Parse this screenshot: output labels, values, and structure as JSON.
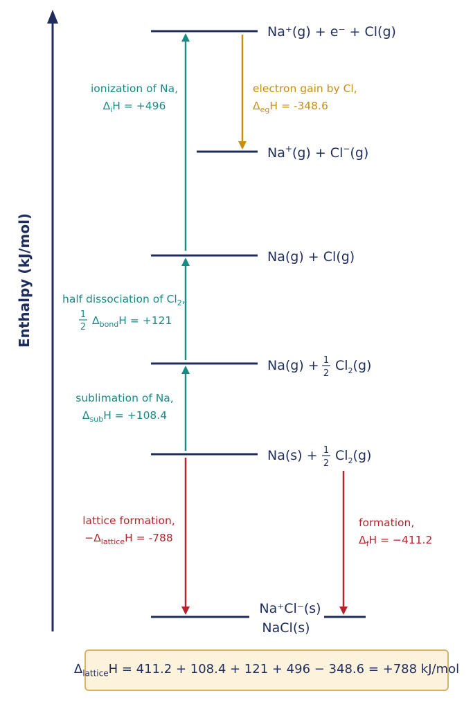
{
  "axis": {
    "label": "Enthalpy (kJ/mol)"
  },
  "levels": {
    "ionized": "Na⁺(g) + e⁻ + Cl(g)",
    "ions_pre": "Na",
    "ions_sup1": "+",
    "ions_mid": "(g) + Cl",
    "ions_sup2": "−",
    "ions_post": "(g)",
    "atoms": "Na(g) + Cl(g)",
    "half_dissoc_pre": "Na(g) +",
    "sublimed_pre": "Na(s) +",
    "frac_num": "1",
    "frac_den": "2",
    "cl2_cl": "Cl",
    "cl2_sub": "2",
    "cl2_post": "(g)",
    "product_line1": "Na⁺Cl⁻(s)",
    "product_line2": "NaCl(s)"
  },
  "steps": {
    "ionization": {
      "title": "ionization of Na,",
      "delta": "Δ",
      "sub": "i",
      "rest": "H = +496"
    },
    "electron_gain": {
      "title": "electron gain by Cl,",
      "delta": "Δ",
      "sub": "eg",
      "rest": "H = -348.6"
    },
    "half_dissociation": {
      "title_pre": "half dissociation of Cl",
      "title_sub": "2",
      "title_post": ",",
      "frac_num": "1",
      "frac_den": "2",
      "delta": "Δ",
      "sub": "bond",
      "rest": "H = +121"
    },
    "sublimation": {
      "title": "sublimation of Na,",
      "delta": "Δ",
      "sub": "sub",
      "rest": "H = +108.4"
    },
    "lattice_formation": {
      "title": "lattice formation,",
      "delta": "−Δ",
      "sub": "lattice",
      "rest": "H = -788"
    },
    "formation": {
      "title": "formation,",
      "delta": "Δ",
      "sub": "f",
      "rest": "H = −411.2"
    }
  },
  "summary": {
    "delta": "Δ",
    "sub": "lattice",
    "rest": "H = 411.2 + 108.4 + 121 + 496 − 348.6 = +788 kJ/mol"
  },
  "colors": {
    "navy": "#1f2d5c",
    "teal": "#1a8a86",
    "gold": "#c58f10",
    "red": "#b5232b"
  }
}
